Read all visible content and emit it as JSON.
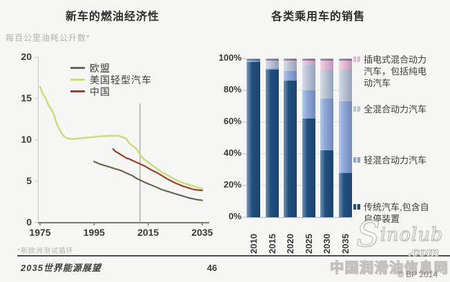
{
  "page": {
    "footer": {
      "publication": "2035世界能源展望",
      "page_number": "46",
      "copyright": "© BP 2014"
    },
    "watermark": {
      "brand_s": "S",
      "brand_rest": "inolub",
      "brand_dot_com": ".com",
      "site_name": "中国润滑油信息网"
    }
  },
  "chart_data": [
    {
      "type": "line",
      "title": "新车的燃油经济性",
      "ylabel": "每百公里油耗公升数*",
      "footnote": "*新欧洲测试循环",
      "xlim": [
        1975,
        2035
      ],
      "ylim": [
        0,
        20
      ],
      "yticks": [
        0,
        5,
        10,
        15,
        20
      ],
      "xticks": [
        1975,
        1995,
        2015,
        2035
      ],
      "marker_line_year": 2012,
      "grid": false,
      "legend_position": "top-left-inside",
      "series": [
        {
          "name": "欧盟",
          "color": "#68664f",
          "width": 2.2,
          "points": [
            [
              1995,
              7.4
            ],
            [
              1997,
              7.1
            ],
            [
              1999,
              6.9
            ],
            [
              2001,
              6.7
            ],
            [
              2003,
              6.5
            ],
            [
              2005,
              6.3
            ],
            [
              2007,
              6.0
            ],
            [
              2009,
              5.7
            ],
            [
              2011,
              5.3
            ],
            [
              2013,
              5.0
            ],
            [
              2015,
              4.7
            ],
            [
              2018,
              4.3
            ],
            [
              2020,
              4.0
            ],
            [
              2023,
              3.7
            ],
            [
              2025,
              3.5
            ],
            [
              2028,
              3.2
            ],
            [
              2030,
              3.0
            ],
            [
              2033,
              2.8
            ],
            [
              2035,
              2.7
            ]
          ]
        },
        {
          "name": "美国轻型汽车",
          "color": "#cedc7f",
          "width": 2.6,
          "points": [
            [
              1975,
              16.4
            ],
            [
              1976,
              15.6
            ],
            [
              1977,
              15.1
            ],
            [
              1978,
              14.3
            ],
            [
              1979,
              13.8
            ],
            [
              1980,
              13.2
            ],
            [
              1981,
              12.1
            ],
            [
              1982,
              11.4
            ],
            [
              1983,
              10.8
            ],
            [
              1984,
              10.4
            ],
            [
              1985,
              10.2
            ],
            [
              1987,
              10.1
            ],
            [
              1990,
              10.2
            ],
            [
              1993,
              10.3
            ],
            [
              1996,
              10.4
            ],
            [
              2000,
              10.5
            ],
            [
              2004,
              10.5
            ],
            [
              2006,
              10.3
            ],
            [
              2007,
              10.1
            ],
            [
              2008,
              9.6
            ],
            [
              2010,
              9.1
            ],
            [
              2011,
              8.8
            ],
            [
              2012,
              8.2
            ],
            [
              2013,
              7.8
            ],
            [
              2015,
              7.3
            ],
            [
              2018,
              6.6
            ],
            [
              2020,
              6.1
            ],
            [
              2023,
              5.6
            ],
            [
              2025,
              5.2
            ],
            [
              2028,
              4.8
            ],
            [
              2030,
              4.6
            ],
            [
              2032,
              4.4
            ],
            [
              2035,
              4.1
            ]
          ]
        },
        {
          "name": "中国",
          "color": "#96402b",
          "width": 2.2,
          "points": [
            [
              2002,
              8.9
            ],
            [
              2003,
              8.6
            ],
            [
              2004,
              8.4
            ],
            [
              2005,
              8.2
            ],
            [
              2006,
              8.0
            ],
            [
              2007,
              7.8
            ],
            [
              2008,
              7.7
            ],
            [
              2010,
              7.4
            ],
            [
              2012,
              7.1
            ],
            [
              2014,
              6.8
            ],
            [
              2016,
              6.4
            ],
            [
              2018,
              6.1
            ],
            [
              2020,
              5.7
            ],
            [
              2022,
              5.3
            ],
            [
              2025,
              4.8
            ],
            [
              2028,
              4.4
            ],
            [
              2030,
              4.2
            ],
            [
              2032,
              4.0
            ],
            [
              2035,
              3.9
            ]
          ]
        }
      ]
    },
    {
      "type": "bar",
      "stacked": true,
      "title": "各类乘用车的销售",
      "unit": "%",
      "ylim": [
        0,
        100
      ],
      "yticks": [
        "0%",
        "20%",
        "40%",
        "60%",
        "80%",
        "100%"
      ],
      "categories": [
        "2010",
        "2015",
        "2020",
        "2025",
        "2030",
        "2035"
      ],
      "grid": true,
      "legend_position": "right",
      "series": [
        {
          "name": "传统汽车,包含自启停装置",
          "color": "#20507f",
          "values": [
            98,
            93,
            86,
            62,
            42,
            28
          ]
        },
        {
          "name": "轻混合动力汽车",
          "color": "#8ca7d8",
          "values": [
            1,
            1,
            6,
            18,
            33,
            45
          ]
        },
        {
          "name": "全混合动力汽车",
          "color": "#bac6d6",
          "values": [
            1,
            5,
            6,
            16,
            18,
            20
          ]
        },
        {
          "name": "插电式混合动力汽车，包括纯电动汽车",
          "color": "#e6b9d6",
          "values": [
            0,
            1,
            2,
            4,
            7,
            7
          ]
        }
      ]
    }
  ]
}
